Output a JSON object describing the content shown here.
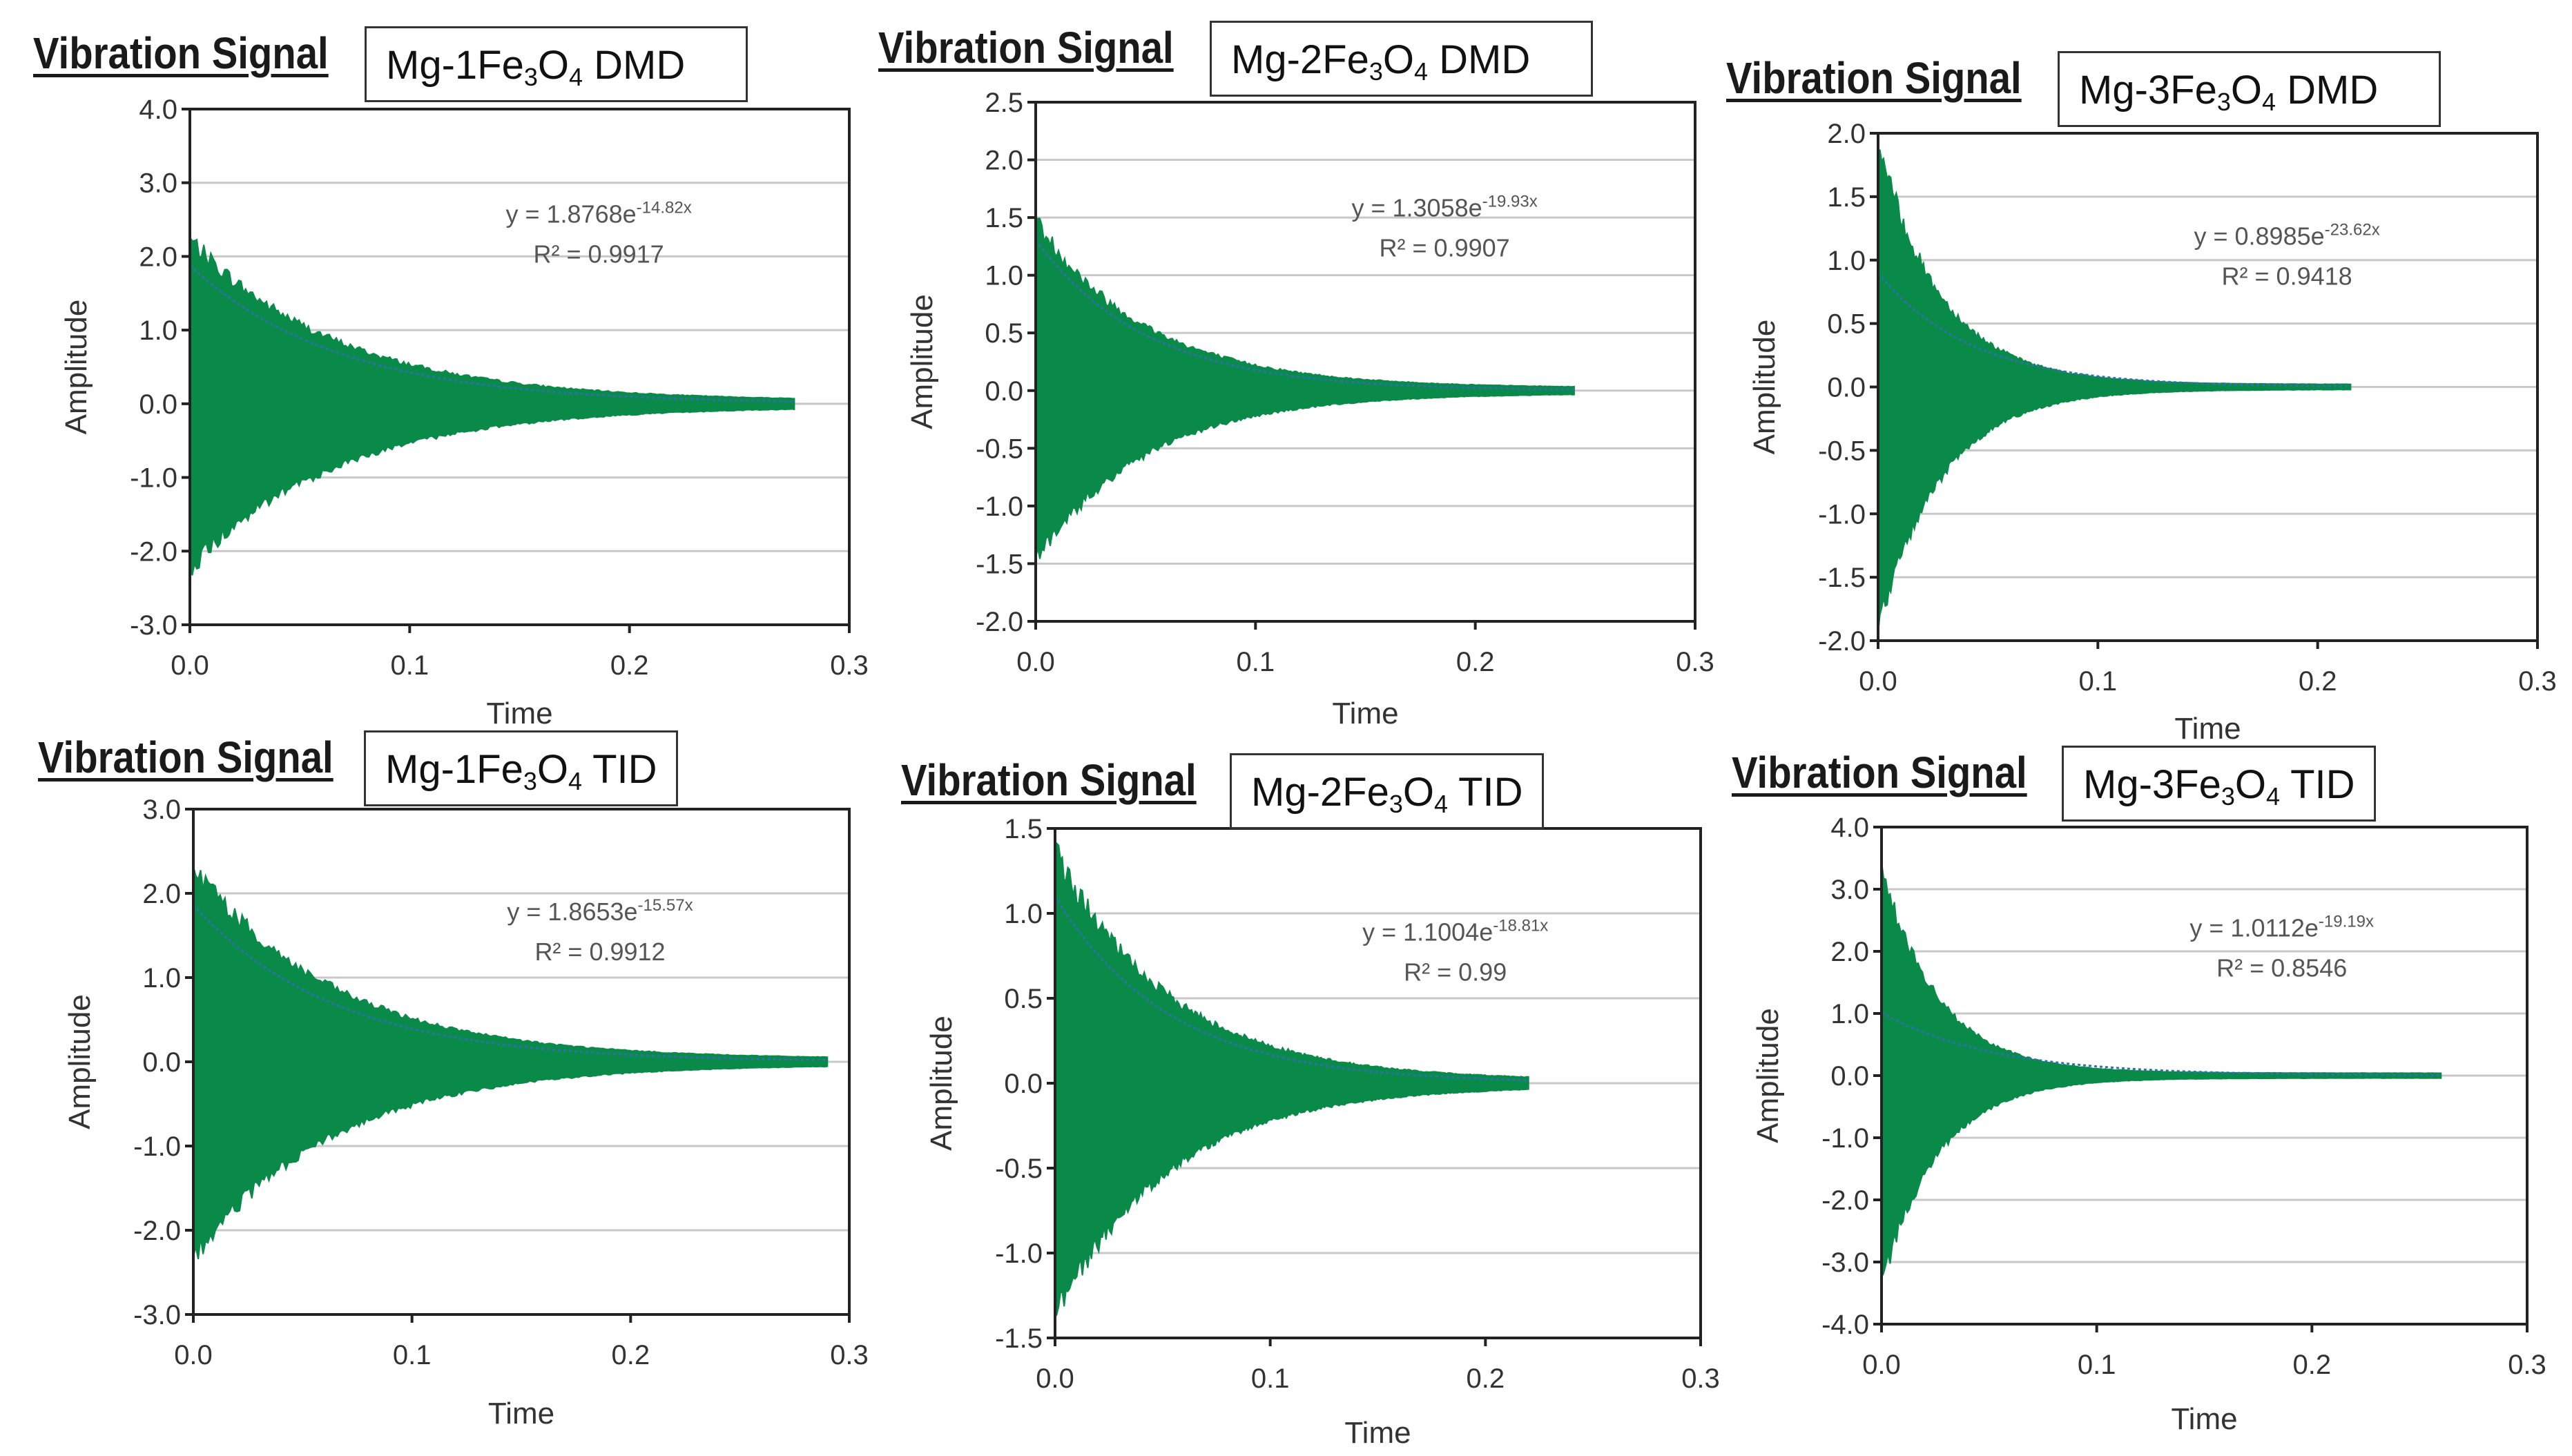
{
  "figure_title": "Vibration Signal",
  "chart_data": [
    {
      "type": "line",
      "title": "Vibration Signal",
      "label_base": "Mg-1Fe",
      "label_sub1": "3",
      "label_mid": "O",
      "label_sub2": "4",
      "label_suffix": " DMD",
      "xlabel": "Time",
      "ylabel": "Amplitude",
      "xlim": [
        0,
        0.3
      ],
      "ylim": [
        -3,
        4
      ],
      "xticks": [
        "0.0",
        "0.1",
        "0.2",
        "0.3"
      ],
      "yticks": [
        "-3.0",
        "-2.0",
        "-1.0",
        "0.0",
        "1.0",
        "2.0",
        "3.0",
        "4.0"
      ],
      "xtick_values": [
        0,
        0.1,
        0.2,
        0.3
      ],
      "ytick_values": [
        -3,
        -2,
        -1,
        0,
        1,
        2,
        3,
        4
      ],
      "signal": {
        "amplitude": 2.2,
        "decay": 14.82,
        "end_time": 0.275
      },
      "fit": {
        "a": 1.8768,
        "b": 14.82,
        "r2": 0.9917
      },
      "equation": "y = 1.8768e",
      "exponent": "-14.82x",
      "r2_text": "R² = 0.9917",
      "colors": {
        "signal": "#0a8a48",
        "envelope": "#2f6fb5"
      }
    },
    {
      "type": "line",
      "title": "Vibration Signal",
      "label_base": "Mg-2Fe",
      "label_sub1": "3",
      "label_mid": "O",
      "label_sub2": "4",
      "label_suffix": " DMD",
      "xlabel": "Time",
      "ylabel": "Amplitude",
      "xlim": [
        0,
        0.3
      ],
      "ylim": [
        -2,
        2.5
      ],
      "xticks": [
        "0.0",
        "0.1",
        "0.2",
        "0.3"
      ],
      "yticks": [
        "-2.0",
        "-1.5",
        "-1.0",
        "-0.5",
        "0.0",
        "0.5",
        "1.0",
        "1.5",
        "2.0",
        "2.5"
      ],
      "xtick_values": [
        0,
        0.1,
        0.2,
        0.3
      ],
      "ytick_values": [
        -2,
        -1.5,
        -1,
        -0.5,
        0,
        0.5,
        1,
        1.5,
        2,
        2.5
      ],
      "signal": {
        "amplitude": 1.45,
        "decay": 19.93,
        "end_time": 0.245
      },
      "fit": {
        "a": 1.3058,
        "b": 19.93,
        "r2": 0.9907
      },
      "equation": "y = 1.3058e",
      "exponent": "-19.93x",
      "r2_text": "R² = 0.9907",
      "colors": {
        "signal": "#0a8a48",
        "envelope": "#2f6fb5"
      }
    },
    {
      "type": "line",
      "title": "Vibration Signal",
      "label_base": "Mg-3Fe",
      "label_sub1": "3",
      "label_mid": "O",
      "label_sub2": "4",
      "label_suffix": " DMD",
      "xlabel": "Time",
      "ylabel": "Amplitude",
      "xlim": [
        0,
        0.3
      ],
      "ylim": [
        -2,
        2
      ],
      "xticks": [
        "0.0",
        "0.1",
        "0.2",
        "0.3"
      ],
      "yticks": [
        "-2.0",
        "-1.5",
        "-1.0",
        "-0.5",
        "0.0",
        "0.5",
        "1.0",
        "1.5",
        "2.0"
      ],
      "xtick_values": [
        0,
        0.1,
        0.2,
        0.3
      ],
      "ytick_values": [
        -2,
        -1.5,
        -1,
        -0.5,
        0,
        0.5,
        1,
        1.5,
        2
      ],
      "signal": {
        "amplitude": 1.9,
        "decay": 35,
        "end_time": 0.215
      },
      "fit": {
        "a": 0.8985,
        "b": 23.62,
        "r2": 0.9418
      },
      "equation": "y = 0.8985e",
      "exponent": "-23.62x",
      "r2_text": "R² = 0.9418",
      "colors": {
        "signal": "#0a8a48",
        "envelope": "#2f6fb5"
      }
    },
    {
      "type": "line",
      "title": "Vibration Signal",
      "label_base": "Mg-1Fe",
      "label_sub1": "3",
      "label_mid": "O",
      "label_sub2": "4",
      "label_suffix": " TID",
      "xlabel": "Time",
      "ylabel": "Amplitude",
      "xlim": [
        0,
        0.3
      ],
      "ylim": [
        -3,
        3
      ],
      "xticks": [
        "0.0",
        "0.1",
        "0.2",
        "0.3"
      ],
      "yticks": [
        "-3.0",
        "-2.0",
        "-1.0",
        "0.0",
        "1.0",
        "2.0",
        "3.0"
      ],
      "xtick_values": [
        0,
        0.1,
        0.2,
        0.3
      ],
      "ytick_values": [
        -3,
        -2,
        -1,
        0,
        1,
        2,
        3
      ],
      "signal": {
        "amplitude": 2.3,
        "decay": 15.57,
        "end_time": 0.29
      },
      "fit": {
        "a": 1.8653,
        "b": 15.57,
        "r2": 0.9912
      },
      "equation": "y = 1.8653e",
      "exponent": "-15.57x",
      "r2_text": "R² = 0.9912",
      "colors": {
        "signal": "#0a8a48",
        "envelope": "#2f6fb5"
      }
    },
    {
      "type": "line",
      "title": "Vibration Signal",
      "label_base": "Mg-2Fe",
      "label_sub1": "3",
      "label_mid": "O",
      "label_sub2": "4",
      "label_suffix": " TID",
      "xlabel": "Time",
      "ylabel": "Amplitude",
      "xlim": [
        0,
        0.3
      ],
      "ylim": [
        -1.5,
        1.5
      ],
      "xticks": [
        "0.0",
        "0.1",
        "0.2",
        "0.3"
      ],
      "yticks": [
        "-1.5",
        "-1.0",
        "-0.5",
        "0.0",
        "0.5",
        "1.0",
        "1.5"
      ],
      "xtick_values": [
        0,
        0.1,
        0.2,
        0.3
      ],
      "ytick_values": [
        -1.5,
        -1,
        -0.5,
        0,
        0.5,
        1,
        1.5
      ],
      "signal": {
        "amplitude": 1.35,
        "decay": 18.81,
        "end_time": 0.22
      },
      "fit": {
        "a": 1.1004,
        "b": 18.81,
        "r2": 0.99
      },
      "equation": "y = 1.1004e",
      "exponent": "-18.81x",
      "r2_text": "R² = 0.99",
      "colors": {
        "signal": "#0a8a48",
        "envelope": "#2f6fb5"
      }
    },
    {
      "type": "line",
      "title": "Vibration Signal",
      "label_base": "Mg-3Fe",
      "label_sub1": "3",
      "label_mid": "O",
      "label_sub2": "4",
      "label_suffix": " TID",
      "xlabel": "Time",
      "ylabel": "Amplitude",
      "xlim": [
        0,
        0.3
      ],
      "ylim": [
        -4,
        4
      ],
      "xticks": [
        "0.0",
        "0.1",
        "0.2",
        "0.3"
      ],
      "yticks": [
        "-4.0",
        "-3.0",
        "-2.0",
        "-1.0",
        "0.0",
        "1.0",
        "2.0",
        "3.0",
        "4.0"
      ],
      "xtick_values": [
        0,
        0.1,
        0.2,
        0.3
      ],
      "ytick_values": [
        -4,
        -3,
        -2,
        -1,
        0,
        1,
        2,
        3,
        4
      ],
      "signal": {
        "amplitude": 3.3,
        "decay": 38,
        "end_time": 0.26
      },
      "fit": {
        "a": 1.0112,
        "b": 19.19,
        "r2": 0.8546
      },
      "equation": "y = 1.0112e",
      "exponent": "-19.19x",
      "r2_text": "R² = 0.8546",
      "colors": {
        "signal": "#0a8a48",
        "envelope": "#2f6fb5"
      }
    }
  ]
}
